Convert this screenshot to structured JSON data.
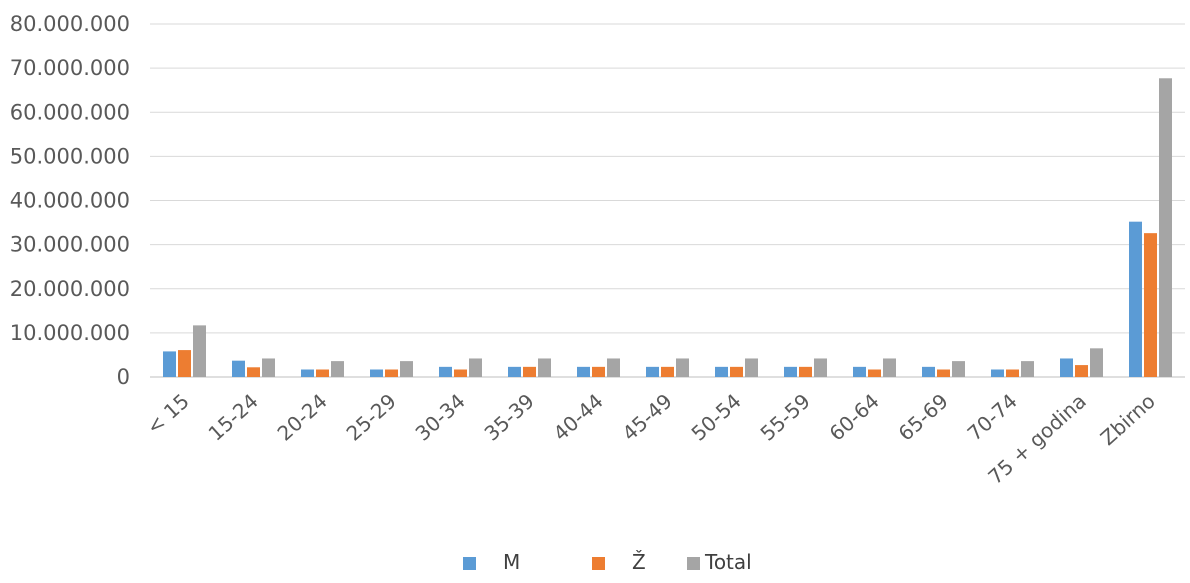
{
  "chart_data": {
    "type": "bar",
    "categories": [
      "< 15",
      "15-24",
      "20-24",
      "25-29",
      "30-34",
      "35-39",
      "40-44",
      "45-49",
      "50-54",
      "55-59",
      "60-64",
      "65-69",
      "70-74",
      "75  + godina",
      "Zbirno"
    ],
    "series": [
      {
        "name": "M",
        "color": "#5B9BD5",
        "values": [
          5800000,
          3700000,
          1700000,
          1700000,
          2300000,
          2300000,
          2300000,
          2300000,
          2300000,
          2300000,
          2300000,
          2300000,
          1700000,
          4200000,
          35200000
        ]
      },
      {
        "name": "Ž",
        "color": "#ED7D31",
        "values": [
          6100000,
          2200000,
          1700000,
          1700000,
          1700000,
          2300000,
          2300000,
          2300000,
          2300000,
          2300000,
          1700000,
          1700000,
          1700000,
          2700000,
          32600000
        ]
      },
      {
        "name": "Total",
        "color": "#A5A5A5",
        "values": [
          11700000,
          4200000,
          3600000,
          3600000,
          4200000,
          4200000,
          4200000,
          4200000,
          4200000,
          4200000,
          4200000,
          3600000,
          3600000,
          6500000,
          67700000
        ]
      }
    ],
    "yticks": [
      "0",
      "10.000.000",
      "20.000.000",
      "30.000.000",
      "40.000.000",
      "50.000.000",
      "60.000.000",
      "70.000.000",
      "80.000.000"
    ],
    "ylim": [
      0,
      80000000
    ],
    "grid": true,
    "legend": "bottom",
    "title": "",
    "xlabel": "",
    "ylabel": ""
  }
}
